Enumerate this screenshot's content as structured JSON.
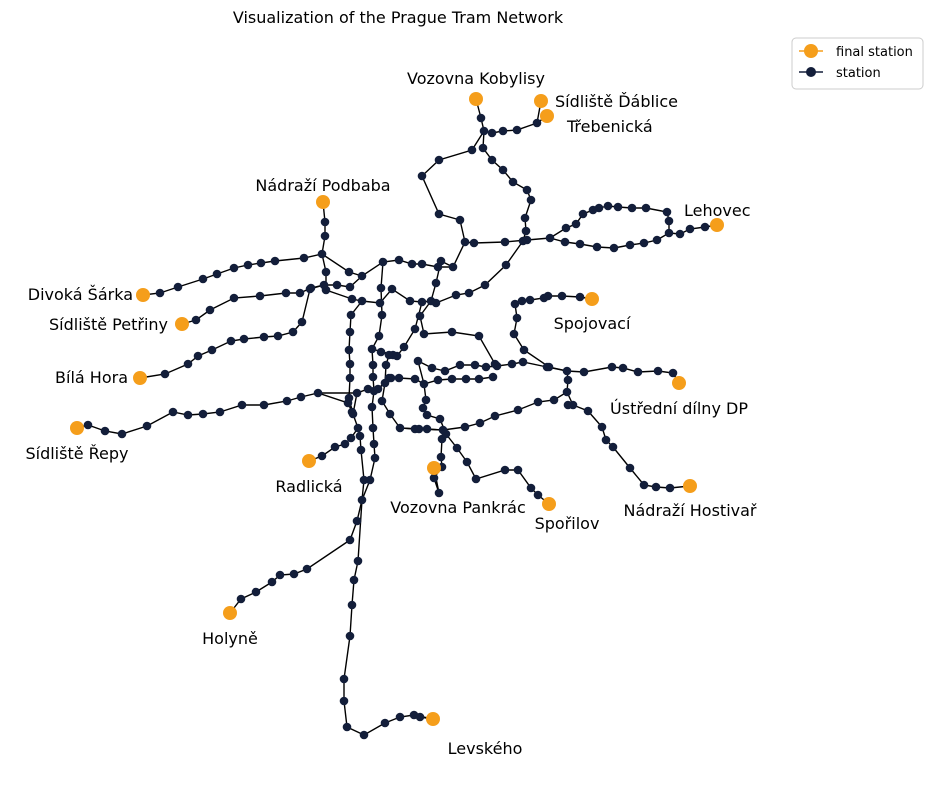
{
  "title": "Visualization of the Prague Tram Network",
  "legend": {
    "final_label": "final station",
    "station_label": "station"
  },
  "colors": {
    "final": "#f59e1b",
    "station": "#131e3a",
    "edge": "#000000"
  },
  "final_stations": [
    {
      "name": "Vozovna Kobylisy"
    },
    {
      "name": "Sídliště Ďáblice"
    },
    {
      "name": "Třebenická"
    },
    {
      "name": "Nádraží Podbaba"
    },
    {
      "name": "Lehovec"
    },
    {
      "name": "Divoká Šárka"
    },
    {
      "name": "Sídliště Petřiny"
    },
    {
      "name": "Spojovací"
    },
    {
      "name": "Bílá Hora"
    },
    {
      "name": "Ústřední dílny DP"
    },
    {
      "name": "Sídliště Řepy"
    },
    {
      "name": "Radlická"
    },
    {
      "name": "Vozovna Pankrác"
    },
    {
      "name": "Spořilov"
    },
    {
      "name": "Nádraží Hostivař"
    },
    {
      "name": "Holyně"
    },
    {
      "name": "Levského"
    }
  ]
}
